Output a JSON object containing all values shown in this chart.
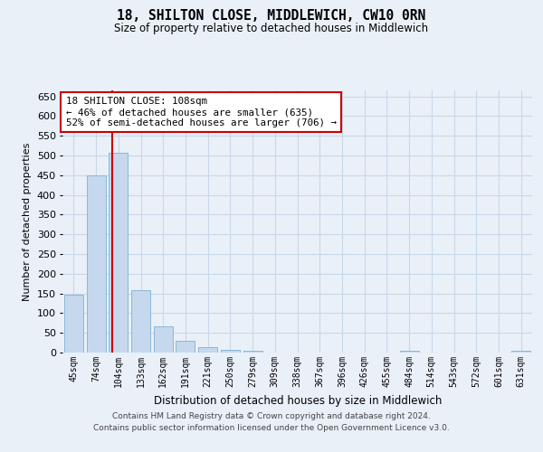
{
  "title": "18, SHILTON CLOSE, MIDDLEWICH, CW10 0RN",
  "subtitle": "Size of property relative to detached houses in Middlewich",
  "xlabel": "Distribution of detached houses by size in Middlewich",
  "ylabel": "Number of detached properties",
  "footer_line1": "Contains HM Land Registry data © Crown copyright and database right 2024.",
  "footer_line2": "Contains public sector information licensed under the Open Government Licence v3.0.",
  "bar_labels": [
    "45sqm",
    "74sqm",
    "104sqm",
    "133sqm",
    "162sqm",
    "191sqm",
    "221sqm",
    "250sqm",
    "279sqm",
    "309sqm",
    "338sqm",
    "367sqm",
    "396sqm",
    "426sqm",
    "455sqm",
    "484sqm",
    "514sqm",
    "543sqm",
    "572sqm",
    "601sqm",
    "631sqm"
  ],
  "bar_values": [
    147,
    450,
    507,
    158,
    66,
    30,
    13,
    8,
    4,
    0,
    0,
    0,
    0,
    0,
    0,
    5,
    0,
    0,
    0,
    0,
    5
  ],
  "bar_color": "#c5d8ed",
  "bar_edge_color": "#8ab8d8",
  "grid_color": "#c8d8e8",
  "background_color": "#eaf0f8",
  "red_line_color": "#cc0000",
  "annotation_line1": "18 SHILTON CLOSE: 108sqm",
  "annotation_line2": "← 46% of detached houses are smaller (635)",
  "annotation_line3": "52% of semi-detached houses are larger (706) →",
  "annotation_box_facecolor": "#ffffff",
  "annotation_box_edgecolor": "#cc0000",
  "ylim_max": 665,
  "yticks": [
    0,
    50,
    100,
    150,
    200,
    250,
    300,
    350,
    400,
    450,
    500,
    550,
    600,
    650
  ]
}
